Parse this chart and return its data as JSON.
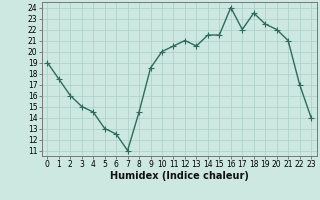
{
  "x": [
    0,
    1,
    2,
    3,
    4,
    5,
    6,
    7,
    8,
    9,
    10,
    11,
    12,
    13,
    14,
    15,
    16,
    17,
    18,
    19,
    20,
    21,
    22,
    23
  ],
  "y": [
    19,
    17.5,
    16,
    15,
    14.5,
    13,
    12.5,
    11,
    14.5,
    18.5,
    20,
    20.5,
    21,
    20.5,
    21.5,
    21.5,
    24,
    22,
    23.5,
    22.5,
    22,
    21,
    17,
    14
  ],
  "line_color": "#2e6b5e",
  "marker": "+",
  "marker_size": 4,
  "bg_color": "#cce8e0",
  "grid_color": "#aacfc8",
  "xlabel": "Humidex (Indice chaleur)",
  "xlim": [
    -0.5,
    23.5
  ],
  "ylim": [
    10.5,
    24.5
  ],
  "yticks": [
    11,
    12,
    13,
    14,
    15,
    16,
    17,
    18,
    19,
    20,
    21,
    22,
    23,
    24
  ],
  "xticks": [
    0,
    1,
    2,
    3,
    4,
    5,
    6,
    7,
    8,
    9,
    10,
    11,
    12,
    13,
    14,
    15,
    16,
    17,
    18,
    19,
    20,
    21,
    22,
    23
  ],
  "tick_label_size": 5.5,
  "xlabel_size": 7,
  "line_width": 1.0,
  "marker_edge_width": 0.8
}
